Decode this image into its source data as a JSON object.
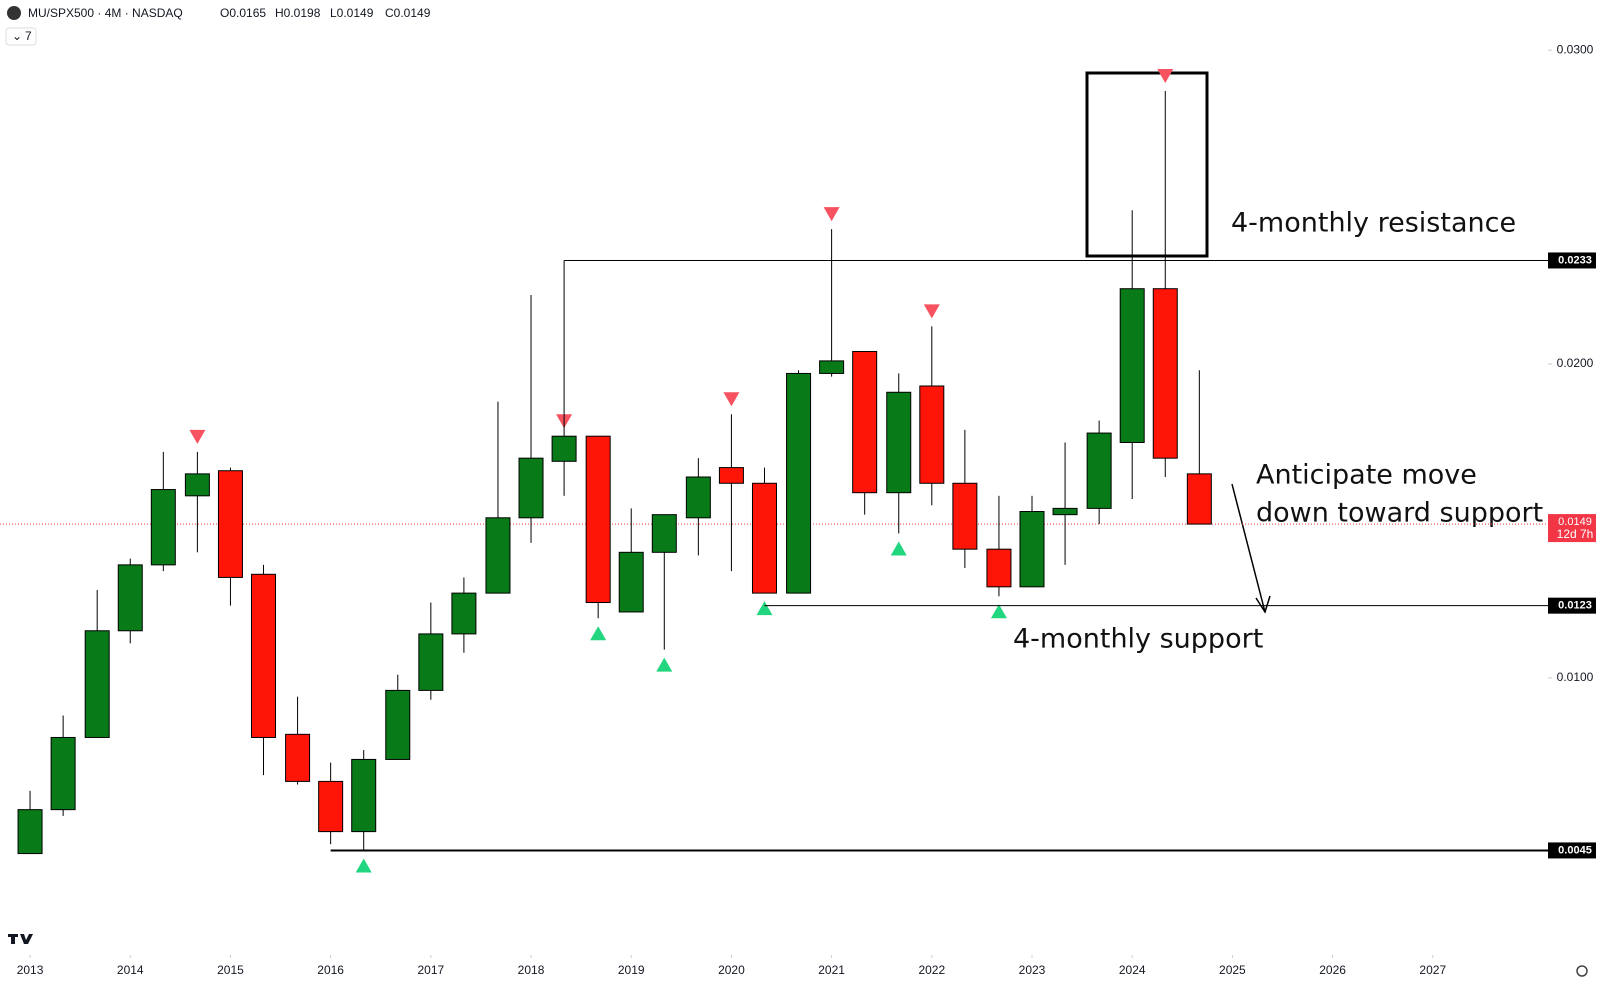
{
  "header": {
    "symbol": "MU/SPX500 · 4M · NASDAQ",
    "ohlc": [
      "O0.0165",
      "H0.0198",
      "L0.0149",
      "C0.0149"
    ],
    "indicators": "7"
  },
  "chart_data": {
    "type": "candlestick",
    "x": [
      2013,
      2013.33,
      2013.67,
      2014,
      2014.33,
      2014.67,
      2015,
      2015.33,
      2015.67,
      2016,
      2016.33,
      2016.67,
      2017,
      2017.33,
      2017.67,
      2018,
      2018.33,
      2018.67,
      2019,
      2019.33,
      2019.67,
      2020,
      2020.33,
      2020.67,
      2021,
      2021.33,
      2021.67,
      2022,
      2022.33,
      2022.67,
      2023,
      2023.33,
      2023.67,
      2024,
      2024.33,
      2024.67
    ],
    "open": [
      0.0044,
      0.0058,
      0.0081,
      0.0115,
      0.0136,
      0.0158,
      0.0166,
      0.0133,
      0.0082,
      0.0067,
      0.0051,
      0.0074,
      0.0096,
      0.0114,
      0.0127,
      0.0151,
      0.0169,
      0.0177,
      0.0121,
      0.014,
      0.0151,
      0.0167,
      0.0162,
      0.0127,
      0.0197,
      0.0204,
      0.0159,
      0.0193,
      0.0162,
      0.0141,
      0.0129,
      0.0152,
      0.0154,
      0.0175,
      0.0224,
      0.0165
    ],
    "high": [
      0.0064,
      0.0088,
      0.0128,
      0.0138,
      0.0172,
      0.0172,
      0.0167,
      0.0136,
      0.0094,
      0.0073,
      0.0077,
      0.0101,
      0.0124,
      0.0132,
      0.0188,
      0.0222,
      0.0177,
      0.0177,
      0.0154,
      0.0152,
      0.017,
      0.0184,
      0.0167,
      0.0198,
      0.0243,
      0.0204,
      0.0197,
      0.0212,
      0.0179,
      0.0158,
      0.0158,
      0.0175,
      0.0182,
      0.0249,
      0.0287,
      0.0198
    ],
    "low": [
      0.0044,
      0.0056,
      0.0081,
      0.0111,
      0.0134,
      0.014,
      0.0123,
      0.0069,
      0.0066,
      0.0047,
      0.0045,
      0.0074,
      0.0093,
      0.0108,
      0.0127,
      0.0143,
      0.0158,
      0.0119,
      0.0121,
      0.0109,
      0.0139,
      0.0134,
      0.0127,
      0.0127,
      0.0196,
      0.0152,
      0.0146,
      0.0155,
      0.0135,
      0.0126,
      0.0129,
      0.0136,
      0.0149,
      0.0157,
      0.0164,
      0.0149
    ],
    "close": [
      0.0058,
      0.0081,
      0.0115,
      0.0136,
      0.016,
      0.0165,
      0.0132,
      0.0081,
      0.0067,
      0.0051,
      0.0074,
      0.0096,
      0.0114,
      0.0127,
      0.0151,
      0.017,
      0.0177,
      0.0124,
      0.014,
      0.0152,
      0.0164,
      0.0162,
      0.0127,
      0.0197,
      0.0201,
      0.0159,
      0.0191,
      0.0162,
      0.0141,
      0.0129,
      0.0153,
      0.0154,
      0.0178,
      0.0224,
      0.017,
      0.0149
    ],
    "up_color": "#087a18",
    "down_color": "#ff1408",
    "pivot_highs": [
      5,
      16,
      21,
      24,
      27,
      34
    ],
    "pivot_lows": [
      10,
      17,
      19,
      22,
      26,
      29
    ],
    "levels": [
      {
        "value": 0.0233,
        "from": 16
      },
      {
        "value": 0.0123,
        "from": 22
      },
      {
        "value": 0.0045,
        "from": 9
      }
    ],
    "countdown": "12d 7h",
    "annotations": [
      "4-monthly resistance",
      "Anticipate move",
      "down toward support",
      "4-monthly support"
    ],
    "xlim": [
      2012.7,
      2028.12
    ],
    "xticks": [
      2013,
      2014,
      2015,
      2016,
      2017,
      2018,
      2019,
      2020,
      2021,
      2022,
      2023,
      2024,
      2025,
      2026,
      2027
    ],
    "ylim": [
      0.0012,
      0.0316
    ],
    "yticks": [
      {
        "value": 0.01,
        "label": "0.0100"
      },
      {
        "value": 0.02,
        "label": "0.0200"
      },
      {
        "value": 0.03,
        "label": "0.0300"
      }
    ]
  }
}
